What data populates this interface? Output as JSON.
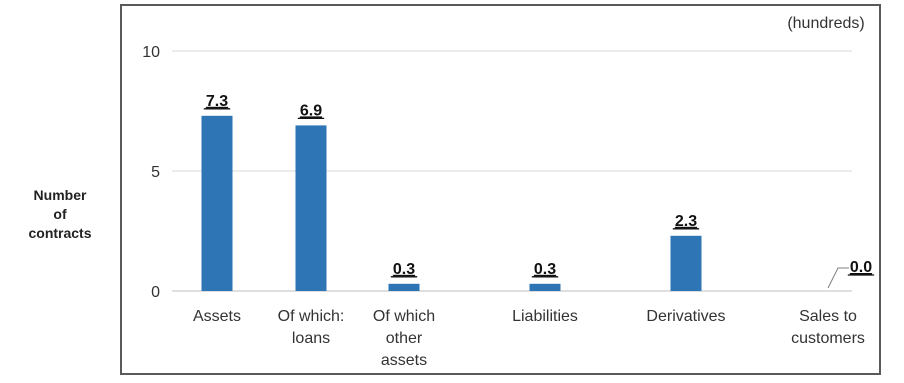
{
  "chart_data": {
    "type": "bar",
    "unit_label": "(hundreds)",
    "ylabel_lines": [
      "Number",
      "of",
      "contracts"
    ],
    "categories": [
      [
        "Assets"
      ],
      [
        "Of which:",
        "loans"
      ],
      [
        "Of which",
        "other",
        "assets"
      ],
      [
        "Liabilities"
      ],
      [
        "Derivatives"
      ],
      [
        "Sales to",
        "customers"
      ]
    ],
    "values": [
      7.3,
      6.9,
      0.3,
      0.3,
      2.3,
      0.0
    ],
    "value_labels": [
      "7.3",
      "6.9",
      "0.3",
      "0.3",
      "2.3",
      "0.0"
    ],
    "yticks": [
      "0",
      "5",
      "10"
    ],
    "ylim": [
      0,
      10
    ],
    "grid": true,
    "colors": {
      "bar": "#2e75b6",
      "grid": "#d9d9d9",
      "axis": "#bfbfbf",
      "frame": "#5a5a5a"
    }
  }
}
